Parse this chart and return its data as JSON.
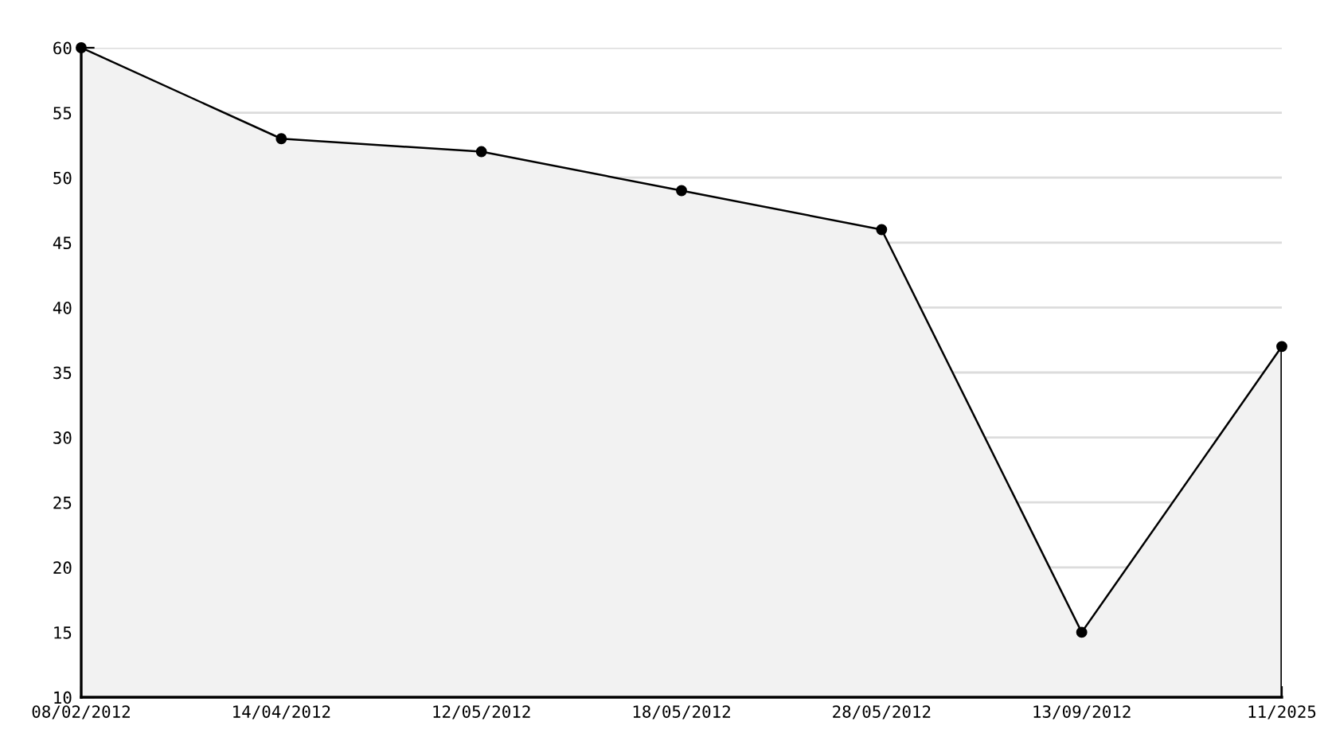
{
  "chart_data": {
    "type": "area",
    "categories": [
      "08/02/2012",
      "14/04/2012",
      "12/05/2012",
      "18/05/2012",
      "28/05/2012",
      "13/09/2012",
      "11/2025"
    ],
    "series": [
      {
        "color": "#000000",
        "values": [
          60,
          53,
          52,
          49,
          46,
          15,
          37
        ]
      }
    ],
    "ylim": [
      10,
      60
    ],
    "yticks": [
      10,
      15,
      20,
      25,
      30,
      35,
      40,
      45,
      50,
      55,
      60
    ],
    "grid": "y",
    "marker": "circle",
    "line_style": "solid",
    "legend": false
  }
}
